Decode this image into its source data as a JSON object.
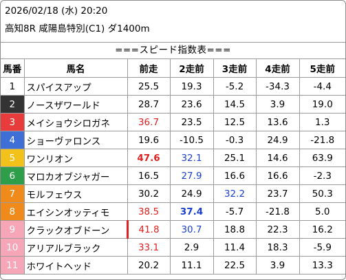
{
  "header": {
    "datetime": "2026/02/18 (水) 20:20",
    "race": "高知8R 咸陽島特別(C1) ダ1400m"
  },
  "title": "===スピード指数表===",
  "columns": [
    "馬番",
    "馬名",
    "前走",
    "2走前",
    "3走前",
    "4走前",
    "5走前"
  ],
  "rows": [
    {
      "num": "1",
      "name": "スパイスアップ",
      "v": [
        "25.5",
        "19.3",
        "-5.2",
        "-34.3",
        "-4.4"
      ]
    },
    {
      "num": "2",
      "name": "ノースザワールド",
      "v": [
        "28.7",
        "23.6",
        "14.5",
        "3.9",
        "19.0"
      ]
    },
    {
      "num": "3",
      "name": "メイショウシロガネ",
      "v": [
        "36.7",
        "23.5",
        "12.5",
        "13.6",
        "1.3"
      ]
    },
    {
      "num": "4",
      "name": "ショーヴァロンス",
      "v": [
        "19.6",
        "-10.5",
        "-0.3",
        "24.9",
        "-21.8"
      ]
    },
    {
      "num": "5",
      "name": "ワンリオン",
      "v": [
        "47.6",
        "32.1",
        "25.1",
        "14.6",
        "63.9"
      ]
    },
    {
      "num": "6",
      "name": "マロカオブジャガー",
      "v": [
        "16.5",
        "27.9",
        "16.6",
        "16.6",
        "-2.3"
      ]
    },
    {
      "num": "7",
      "name": "モルフェウス",
      "v": [
        "30.2",
        "24.9",
        "32.2",
        "23.7",
        "50.3"
      ]
    },
    {
      "num": "8",
      "name": "エイシンオッティモ",
      "v": [
        "38.5",
        "37.4",
        "-5.7",
        "-21.8",
        "5.0"
      ]
    },
    {
      "num": "9",
      "name": "クラックオブドーン",
      "v": [
        "41.8",
        "30.7",
        "18.8",
        "22.3",
        "16.2"
      ]
    },
    {
      "num": "10",
      "name": "アリアルブラック",
      "v": [
        "33.1",
        "2.9",
        "11.4",
        "18.3",
        "-5.9"
      ]
    },
    {
      "num": "11",
      "name": "ホワイトヘッド",
      "v": [
        "20.2",
        "11.1",
        "22.5",
        "3.9",
        "13.3"
      ]
    }
  ],
  "colors": {
    "gate_1": "#ffffff",
    "gate_2": "#333333",
    "gate_3": "#e83b3b",
    "gate_4": "#3d6fd6",
    "gate_5": "#f2c21b",
    "gate_6": "#2e9e4a",
    "gate_7": "#f08a1a",
    "gate_8": "#f08a1a",
    "gate_9": "#f7a6b8",
    "gate_10": "#f7a6b8",
    "gate_11": "#f7a6b8",
    "highlight_red": "#e0201e",
    "highlight_blue": "#1a3fd0"
  }
}
